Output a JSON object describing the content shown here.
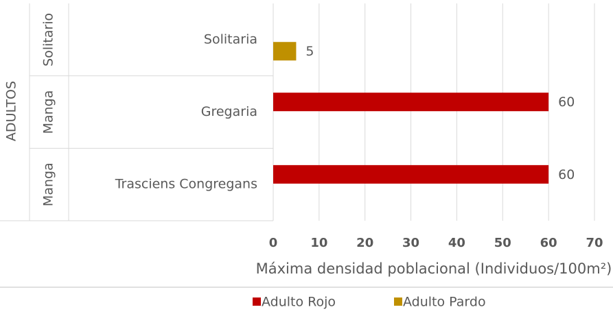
{
  "chart_data": {
    "type": "bar",
    "orientation": "horizontal",
    "categories": [
      "Solitaria",
      "Gregaria",
      "Trasciens Congregans"
    ],
    "category_groups": [
      "Solitario",
      "Manga",
      "Manga"
    ],
    "category_supergroup": "ADULTOS",
    "series": [
      {
        "name": "Adulto Rojo",
        "color": "#c00000",
        "values": [
          null,
          60,
          60
        ]
      },
      {
        "name": "Adulto Pardo",
        "color": "#bf9000",
        "values": [
          5,
          null,
          null
        ]
      }
    ],
    "x_label": "Máxima densidad poblacional (Individuos/100m²)",
    "xlim": [
      0,
      70
    ],
    "xticks": [
      0,
      10,
      20,
      30,
      40,
      50,
      60,
      70
    ],
    "grid": true,
    "legend": "bottom"
  }
}
